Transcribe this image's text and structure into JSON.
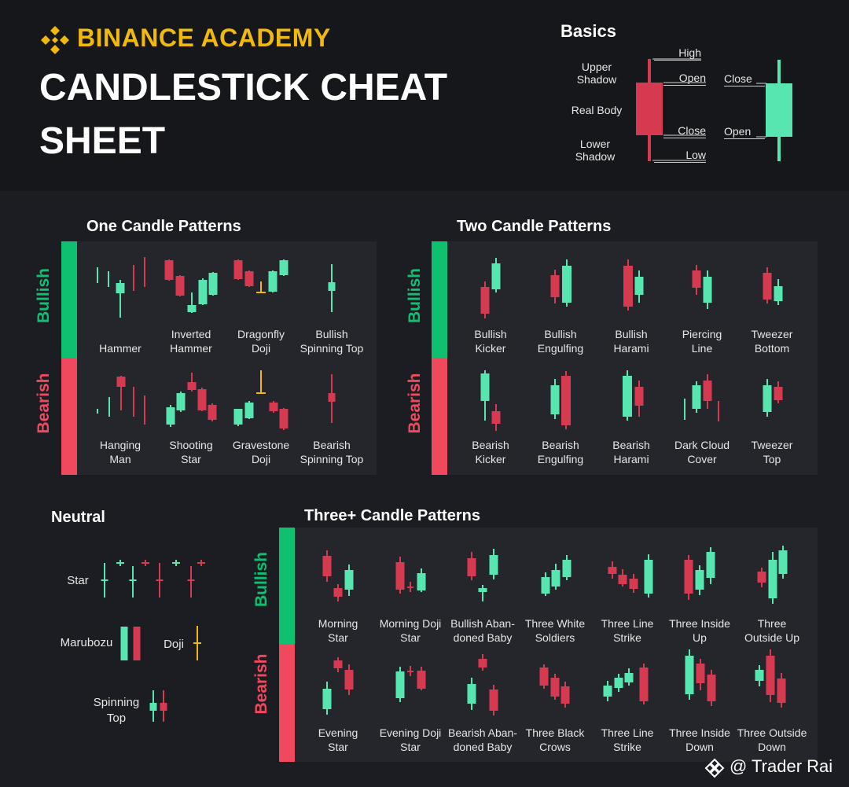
{
  "header": {
    "brand": "BINANCE ACADEMY",
    "title_line1": "CANDLESTICK CHEAT",
    "title_line2": "SHEET"
  },
  "basics": {
    "title": "Basics",
    "upper_shadow": [
      "Upper",
      "Shadow"
    ],
    "real_body": "Real Body",
    "lower_shadow": [
      "Lower",
      "Shadow"
    ],
    "high": "High",
    "open": "Open",
    "close": "Close",
    "low": "Low",
    "green_close": "Close",
    "green_open": "Open"
  },
  "sections": {
    "one": "One Candle Patterns",
    "two": "Two Candle Patterns",
    "neutral": "Neutral",
    "three": "Three+ Candle Patterns",
    "bullish": "Bullish",
    "bearish": "Bearish"
  },
  "one_bull": [
    {
      "l1": "",
      "l2": "Hammer"
    },
    {
      "l1": "Inverted",
      "l2": "Hammer"
    },
    {
      "l1": "Dragonfly",
      "l2": "Doji"
    },
    {
      "l1": "Bullish",
      "l2": "Spinning Top"
    }
  ],
  "one_bear": [
    {
      "l1": "Hanging",
      "l2": "Man"
    },
    {
      "l1": "Shooting",
      "l2": "Star"
    },
    {
      "l1": "Gravestone",
      "l2": "Doji"
    },
    {
      "l1": "Bearish",
      "l2": "Spinning Top"
    }
  ],
  "two_bull": [
    {
      "l1": "Bullish",
      "l2": "Kicker"
    },
    {
      "l1": "Bullish",
      "l2": "Engulfing"
    },
    {
      "l1": "Bullish",
      "l2": "Harami"
    },
    {
      "l1": "Piercing",
      "l2": "Line"
    },
    {
      "l1": "Tweezer",
      "l2": "Bottom"
    }
  ],
  "two_bear": [
    {
      "l1": "Bearish",
      "l2": "Kicker"
    },
    {
      "l1": "Bearish",
      "l2": "Engulfing"
    },
    {
      "l1": "Bearish",
      "l2": "Harami"
    },
    {
      "l1": "Dark Cloud",
      "l2": "Cover"
    },
    {
      "l1": "Tweezer",
      "l2": "Top"
    }
  ],
  "three_bull": [
    {
      "l1": "Morning",
      "l2": "Star"
    },
    {
      "l1": "Morning Doji",
      "l2": "Star"
    },
    {
      "l1": "Bullish Aban-",
      "l2": "doned Baby"
    },
    {
      "l1": "Three White",
      "l2": "Soldiers"
    },
    {
      "l1": "Three Line",
      "l2": "Strike"
    },
    {
      "l1": "Three Inside",
      "l2": "Up"
    },
    {
      "l1": "Three",
      "l2": "Outside Up"
    }
  ],
  "three_bear": [
    {
      "l1": "Evening",
      "l2": "Star"
    },
    {
      "l1": "Evening Doji",
      "l2": "Star"
    },
    {
      "l1": "Bearish Aban-",
      "l2": "doned Baby"
    },
    {
      "l1": "Three Black",
      "l2": "Crows"
    },
    {
      "l1": "Three Line",
      "l2": "Strike"
    },
    {
      "l1": "Three Inside",
      "l2": "Down"
    },
    {
      "l1": "Three Outside",
      "l2": "Down"
    }
  ],
  "neutral": {
    "star": "Star",
    "marubozu": "Marubozu",
    "doji": "Doji",
    "spinning_top": [
      "Spinning",
      "Top"
    ]
  },
  "footer": {
    "credit": "@ Trader Rai",
    "icon": "binance-diamond-icon"
  },
  "colors": {
    "bull": "#57e6b0",
    "bear": "#d63a50",
    "doji": "#f0b90b",
    "bull_bar": "#0ec06f",
    "bear_bar": "#f0495d",
    "brand": "#f0b90b"
  }
}
